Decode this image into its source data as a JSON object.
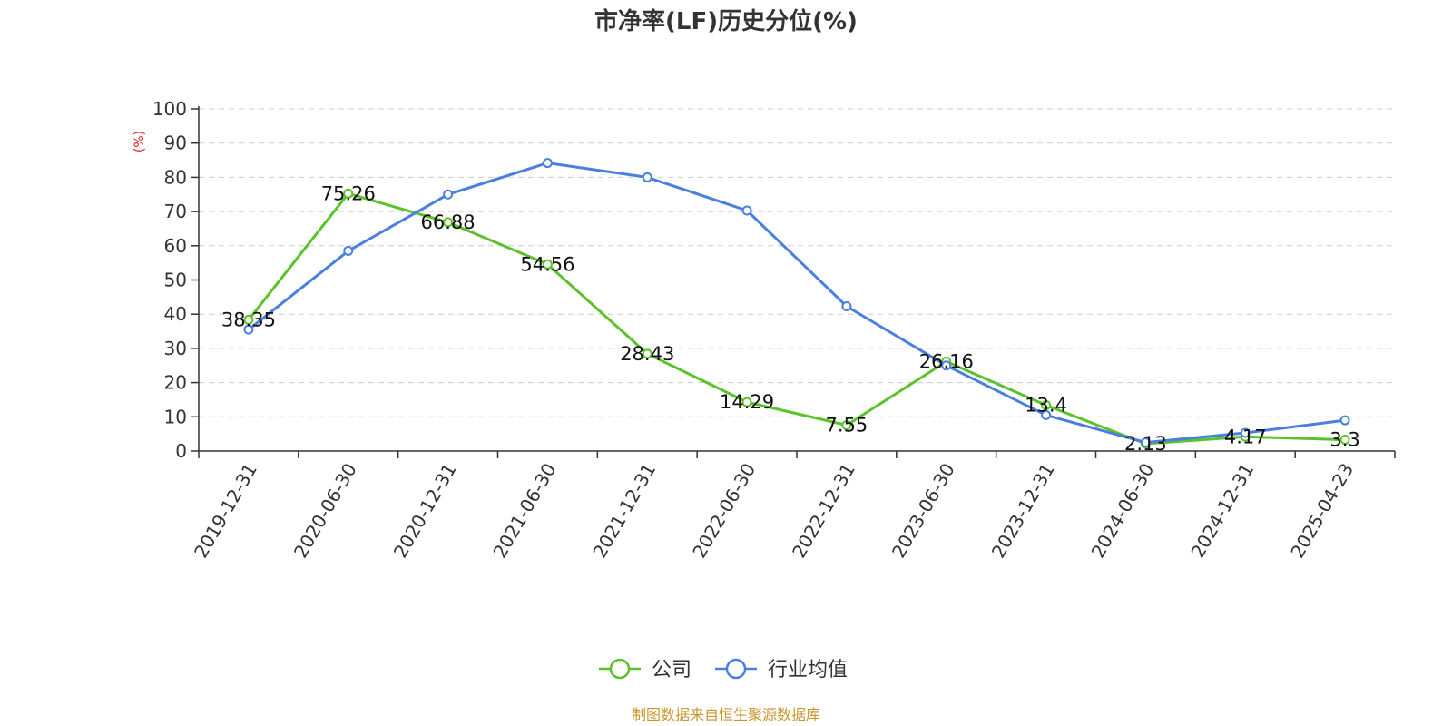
{
  "chart_data": {
    "type": "line",
    "title": "市净率(LF)历史分位(%)",
    "ylabel": "(%)",
    "xlabel": "",
    "ylim": [
      0,
      100
    ],
    "yticks": [
      0,
      10,
      20,
      30,
      40,
      50,
      60,
      70,
      80,
      90,
      100
    ],
    "grid": true,
    "legend_position": "bottom",
    "categories": [
      "2019-12-31",
      "2020-06-30",
      "2020-12-31",
      "2021-06-30",
      "2021-12-31",
      "2022-06-30",
      "2022-12-31",
      "2023-06-30",
      "2023-12-31",
      "2024-06-30",
      "2024-12-31",
      "2025-04-23"
    ],
    "series": [
      {
        "name": "公司",
        "color": "#5cc22b",
        "values": [
          38.35,
          75.26,
          66.88,
          54.56,
          28.43,
          14.29,
          7.55,
          26.16,
          13.4,
          2.13,
          4.17,
          3.3
        ],
        "labels": [
          "38.35",
          "75.26",
          "66.88",
          "54.56",
          "28.43",
          "14.29",
          "7.55",
          "26.16",
          "13.4",
          "2.13",
          "4.17",
          "3.3"
        ]
      },
      {
        "name": "行业均值",
        "color": "#4a7fe0",
        "values": [
          35.5,
          58.5,
          75,
          84.2,
          80,
          70.3,
          42.3,
          25,
          10.5,
          2.5,
          5.3,
          9
        ]
      }
    ]
  },
  "source": {
    "text": "制图数据来自恒生聚源数据库",
    "color": "#c8962c"
  },
  "ylabel_color": "#e02020"
}
